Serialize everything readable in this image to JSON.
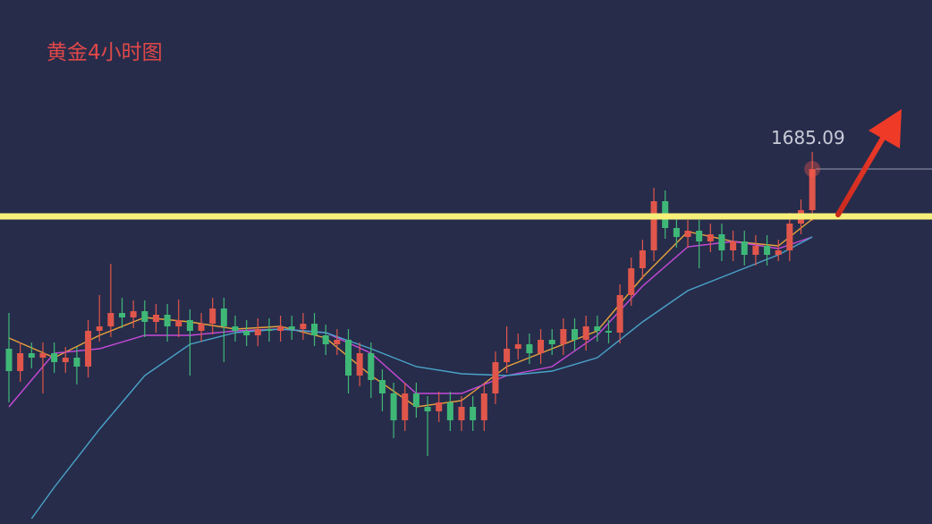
{
  "chart_data": {
    "type": "candlestick",
    "title": "黄金4小时图",
    "up_color": "#e0564b",
    "down_color": "#3fb877",
    "ylim": [
      1605.7,
      1722.9
    ],
    "open": [
      1644.9,
      1639.9,
      1643.9,
      1642.9,
      1643.9,
      1641.9,
      1642.9,
      1640.9,
      1648.9,
      1649.9,
      1652.9,
      1651.9,
      1653.3,
      1650.9,
      1652.5,
      1649.9,
      1651.3,
      1648.9,
      1650.5,
      1653.9,
      1649.9,
      1648.9,
      1647.9,
      1649.3,
      1648.9,
      1649.9,
      1649.3,
      1650.5,
      1647.9,
      1645.9,
      1646.9,
      1638.9,
      1643.9,
      1637.9,
      1634.9,
      1628.9,
      1634.9,
      1631.9,
      1630.9,
      1632.9,
      1628.9,
      1631.9,
      1628.9,
      1634.9,
      1641.9,
      1644.9,
      1645.9,
      1643.9,
      1646.9,
      1645.9,
      1649.3,
      1646.9,
      1649.9,
      1648.9,
      1648.5,
      1656.9,
      1662.9,
      1666.9,
      1677.9,
      1671.9,
      1669.9,
      1671.3,
      1668.9,
      1670.5,
      1666.9,
      1668.9,
      1665.9,
      1667.9,
      1665.9,
      1666.9,
      1672.9,
      1675.9
    ],
    "high": [
      1652.9,
      1646.3,
      1646.3,
      1646.3,
      1646.3,
      1645.3,
      1645.3,
      1651.3,
      1656.9,
      1663.9,
      1656.3,
      1655.7,
      1655.7,
      1654.9,
      1654.9,
      1655.9,
      1653.7,
      1652.9,
      1656.3,
      1656.3,
      1652.3,
      1651.3,
      1651.7,
      1651.7,
      1652.3,
      1652.3,
      1652.9,
      1652.9,
      1650.3,
      1649.3,
      1649.3,
      1646.3,
      1646.3,
      1640.3,
      1637.3,
      1637.3,
      1637.3,
      1634.3,
      1635.3,
      1635.3,
      1634.3,
      1634.3,
      1637.3,
      1644.3,
      1649.9,
      1648.3,
      1648.3,
      1649.3,
      1649.3,
      1651.7,
      1651.7,
      1652.3,
      1652.3,
      1651.3,
      1659.3,
      1665.3,
      1669.3,
      1680.9,
      1680.3,
      1674.3,
      1673.7,
      1673.7,
      1672.9,
      1672.9,
      1671.3,
      1671.3,
      1670.3,
      1670.3,
      1669.3,
      1675.3,
      1678.3,
      1688.9
    ],
    "low": [
      1632.9,
      1637.5,
      1640.5,
      1634.9,
      1639.5,
      1639.5,
      1636.9,
      1638.5,
      1646.5,
      1647.5,
      1649.5,
      1649.5,
      1647.5,
      1648.5,
      1646.5,
      1647.5,
      1638.9,
      1646.5,
      1648.1,
      1641.9,
      1646.5,
      1645.5,
      1645.5,
      1646.5,
      1646.5,
      1646.9,
      1646.9,
      1645.5,
      1643.5,
      1643.5,
      1634.9,
      1636.5,
      1633.9,
      1630.9,
      1624.9,
      1626.5,
      1629.5,
      1620.9,
      1628.5,
      1626.5,
      1626.5,
      1626.5,
      1626.5,
      1632.5,
      1639.5,
      1642.5,
      1641.5,
      1641.5,
      1643.5,
      1643.5,
      1644.5,
      1644.5,
      1646.5,
      1646.1,
      1646.1,
      1654.5,
      1660.5,
      1664.5,
      1669.5,
      1667.5,
      1667.5,
      1662.9,
      1666.5,
      1664.5,
      1664.5,
      1663.5,
      1663.5,
      1663.5,
      1664.5,
      1664.5,
      1670.5,
      1673.5
    ],
    "close": [
      1639.9,
      1643.9,
      1642.9,
      1643.9,
      1641.9,
      1642.9,
      1640.9,
      1648.9,
      1649.9,
      1652.9,
      1651.9,
      1653.3,
      1650.9,
      1652.5,
      1649.9,
      1651.3,
      1648.9,
      1650.5,
      1653.9,
      1649.9,
      1648.9,
      1647.9,
      1649.3,
      1648.9,
      1649.9,
      1649.3,
      1650.5,
      1647.9,
      1645.9,
      1646.9,
      1638.9,
      1643.9,
      1637.9,
      1634.9,
      1628.9,
      1634.9,
      1631.9,
      1630.9,
      1632.9,
      1628.9,
      1631.9,
      1628.9,
      1634.9,
      1641.9,
      1644.9,
      1645.9,
      1643.9,
      1646.9,
      1645.9,
      1649.3,
      1646.9,
      1649.9,
      1648.9,
      1648.5,
      1656.9,
      1662.9,
      1666.9,
      1677.9,
      1671.9,
      1669.9,
      1671.3,
      1668.9,
      1670.5,
      1666.9,
      1668.9,
      1665.9,
      1667.9,
      1665.9,
      1666.9,
      1672.9,
      1675.9,
      1685.09
    ],
    "series": [
      {
        "color": "#e8a23c",
        "x": [
          0,
          4,
          8,
          12,
          16,
          20,
          24,
          28,
          32,
          36,
          40,
          44,
          48,
          52,
          56,
          60,
          64,
          68,
          71
        ],
        "values": [
          1647.3,
          1642.9,
          1647.9,
          1651.9,
          1650.9,
          1649.3,
          1649.9,
          1647.3,
          1638.9,
          1631.9,
          1633.3,
          1640.9,
          1644.9,
          1648.9,
          1660.9,
          1671.1,
          1668.9,
          1667.9,
          1673.9
        ]
      },
      {
        "color": "#c74ad8",
        "x": [
          0,
          4,
          8,
          12,
          16,
          20,
          24,
          28,
          32,
          36,
          40,
          44,
          48,
          52,
          56,
          60,
          64,
          68,
          71
        ],
        "values": [
          1631.9,
          1643.9,
          1644.9,
          1647.9,
          1647.9,
          1648.9,
          1649.3,
          1648.5,
          1643.9,
          1634.9,
          1634.9,
          1638.9,
          1640.9,
          1647.9,
          1658.9,
          1667.7,
          1668.9,
          1667.3,
          1669.9
        ]
      },
      {
        "color": "#4aa3c9",
        "x": [
          2,
          4,
          8,
          12,
          16,
          20,
          24,
          28,
          32,
          36,
          40,
          44,
          48,
          52,
          56,
          60,
          64,
          68,
          71
        ],
        "values": [
          1606.9,
          1613.9,
          1626.9,
          1638.9,
          1645.9,
          1648.5,
          1649.3,
          1648.5,
          1644.9,
          1640.9,
          1639.3,
          1638.9,
          1639.9,
          1642.9,
          1650.9,
          1657.9,
          1661.9,
          1665.9,
          1669.9
        ]
      }
    ],
    "support_line": {
      "value": 1674.5,
      "color": "#f6f07a"
    },
    "last_price": 1685.09
  }
}
